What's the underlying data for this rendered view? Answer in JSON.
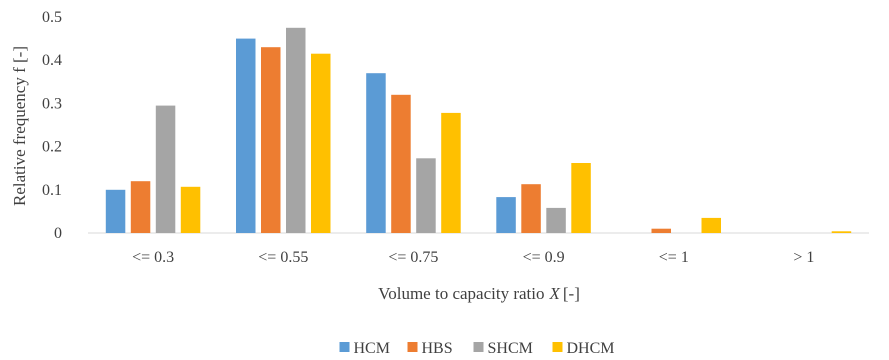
{
  "chart_data": {
    "type": "bar",
    "categories": [
      "<= 0.3",
      "<= 0.55",
      "<= 0.75",
      "<= 0.9",
      "<= 1",
      "> 1"
    ],
    "series": [
      {
        "name": "HCM",
        "color": "#5b9bd5",
        "values": [
          0.1,
          0.45,
          0.37,
          0.083,
          0.0,
          0.0
        ]
      },
      {
        "name": "HBS",
        "color": "#ed7d31",
        "values": [
          0.12,
          0.43,
          0.32,
          0.113,
          0.01,
          0.0
        ]
      },
      {
        "name": "SHCM",
        "color": "#a5a5a5",
        "values": [
          0.295,
          0.475,
          0.173,
          0.058,
          0.0,
          0.0
        ]
      },
      {
        "name": "DHCM",
        "color": "#ffc000",
        "values": [
          0.107,
          0.415,
          0.278,
          0.162,
          0.035,
          0.004
        ]
      }
    ],
    "yticks": [
      "0",
      "0.1",
      "0.2",
      "0.3",
      "0.4",
      "0.5"
    ],
    "ylim": [
      0,
      0.5
    ],
    "ylabel": "Relative  frequency f [-]",
    "xlabel_text": "Volume to capacity ratio",
    "xlabel_var": "X",
    "xlabel_unit": "[-]",
    "grid": false,
    "legend_position": "bottom"
  }
}
